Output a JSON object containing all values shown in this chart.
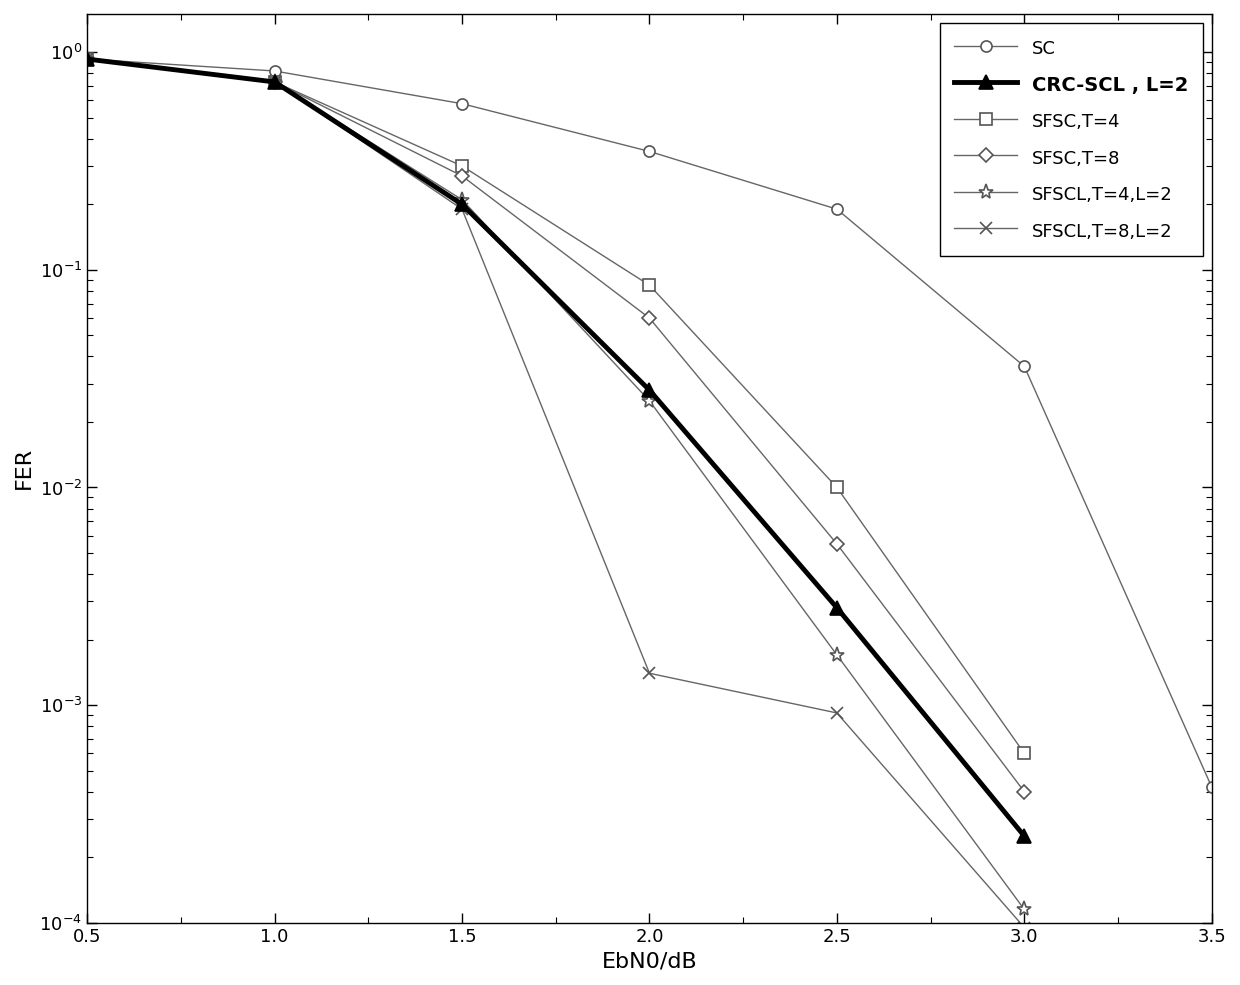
{
  "xlabel": "EbN0/dB",
  "ylabel": "FER",
  "xlim": [
    0.5,
    3.5
  ],
  "ylim": [
    0.0001,
    1.5
  ],
  "xticks": [
    0.5,
    1.0,
    1.5,
    2.0,
    2.5,
    3.0,
    3.5
  ],
  "series": [
    {
      "label": "SC",
      "x": [
        0.5,
        1.0,
        1.5,
        2.0,
        2.5,
        3.0,
        3.5
      ],
      "y": [
        0.93,
        0.82,
        0.58,
        0.35,
        0.19,
        0.036,
        0.00042
      ],
      "color": "#666666",
      "linewidth": 1.0,
      "marker": "o",
      "markersize": 8,
      "markerfacecolor": "white",
      "markeredgecolor": "#555555",
      "linestyle": "-",
      "zorder": 2
    },
    {
      "label": "CRC-SCL , L=2",
      "x": [
        0.5,
        1.0,
        1.5,
        2.0,
        2.5,
        3.0
      ],
      "y": [
        0.93,
        0.73,
        0.2,
        0.028,
        0.0028,
        0.00025
      ],
      "color": "#000000",
      "linewidth": 3.5,
      "marker": "^",
      "markersize": 10,
      "markerfacecolor": "black",
      "markeredgecolor": "black",
      "linestyle": "-",
      "zorder": 5
    },
    {
      "label": "SFSC,T=4",
      "x": [
        0.5,
        1.0,
        1.5,
        2.0,
        2.5,
        3.0
      ],
      "y": [
        0.93,
        0.73,
        0.3,
        0.085,
        0.01,
        0.0006
      ],
      "color": "#666666",
      "linewidth": 1.0,
      "marker": "s",
      "markersize": 8,
      "markerfacecolor": "white",
      "markeredgecolor": "#555555",
      "linestyle": "-",
      "zorder": 2
    },
    {
      "label": "SFSC,T=8",
      "x": [
        0.5,
        1.0,
        1.5,
        2.0,
        2.5,
        3.0
      ],
      "y": [
        0.93,
        0.73,
        0.27,
        0.06,
        0.0055,
        0.0004
      ],
      "color": "#666666",
      "linewidth": 1.0,
      "marker": "D",
      "markersize": 7,
      "markerfacecolor": "white",
      "markeredgecolor": "#555555",
      "linestyle": "-",
      "zorder": 2
    },
    {
      "label": "SFSCL,T=4,L=2",
      "x": [
        0.5,
        1.0,
        1.5,
        2.0,
        2.5,
        3.0
      ],
      "y": [
        0.93,
        0.73,
        0.21,
        0.025,
        0.0017,
        0.000115
      ],
      "color": "#666666",
      "linewidth": 1.0,
      "marker": "*",
      "markersize": 11,
      "markerfacecolor": "white",
      "markeredgecolor": "#555555",
      "linestyle": "-",
      "zorder": 2
    },
    {
      "label": "SFSCL,T=8,L=2",
      "x": [
        0.5,
        1.0,
        1.5,
        2.0,
        2.5,
        3.0
      ],
      "y": [
        0.93,
        0.73,
        0.19,
        0.0014,
        0.00092,
        9.5e-05
      ],
      "color": "#666666",
      "linewidth": 1.0,
      "marker": "x",
      "markersize": 8,
      "markerfacecolor": "none",
      "markeredgecolor": "#555555",
      "linestyle": "-",
      "zorder": 2
    }
  ]
}
